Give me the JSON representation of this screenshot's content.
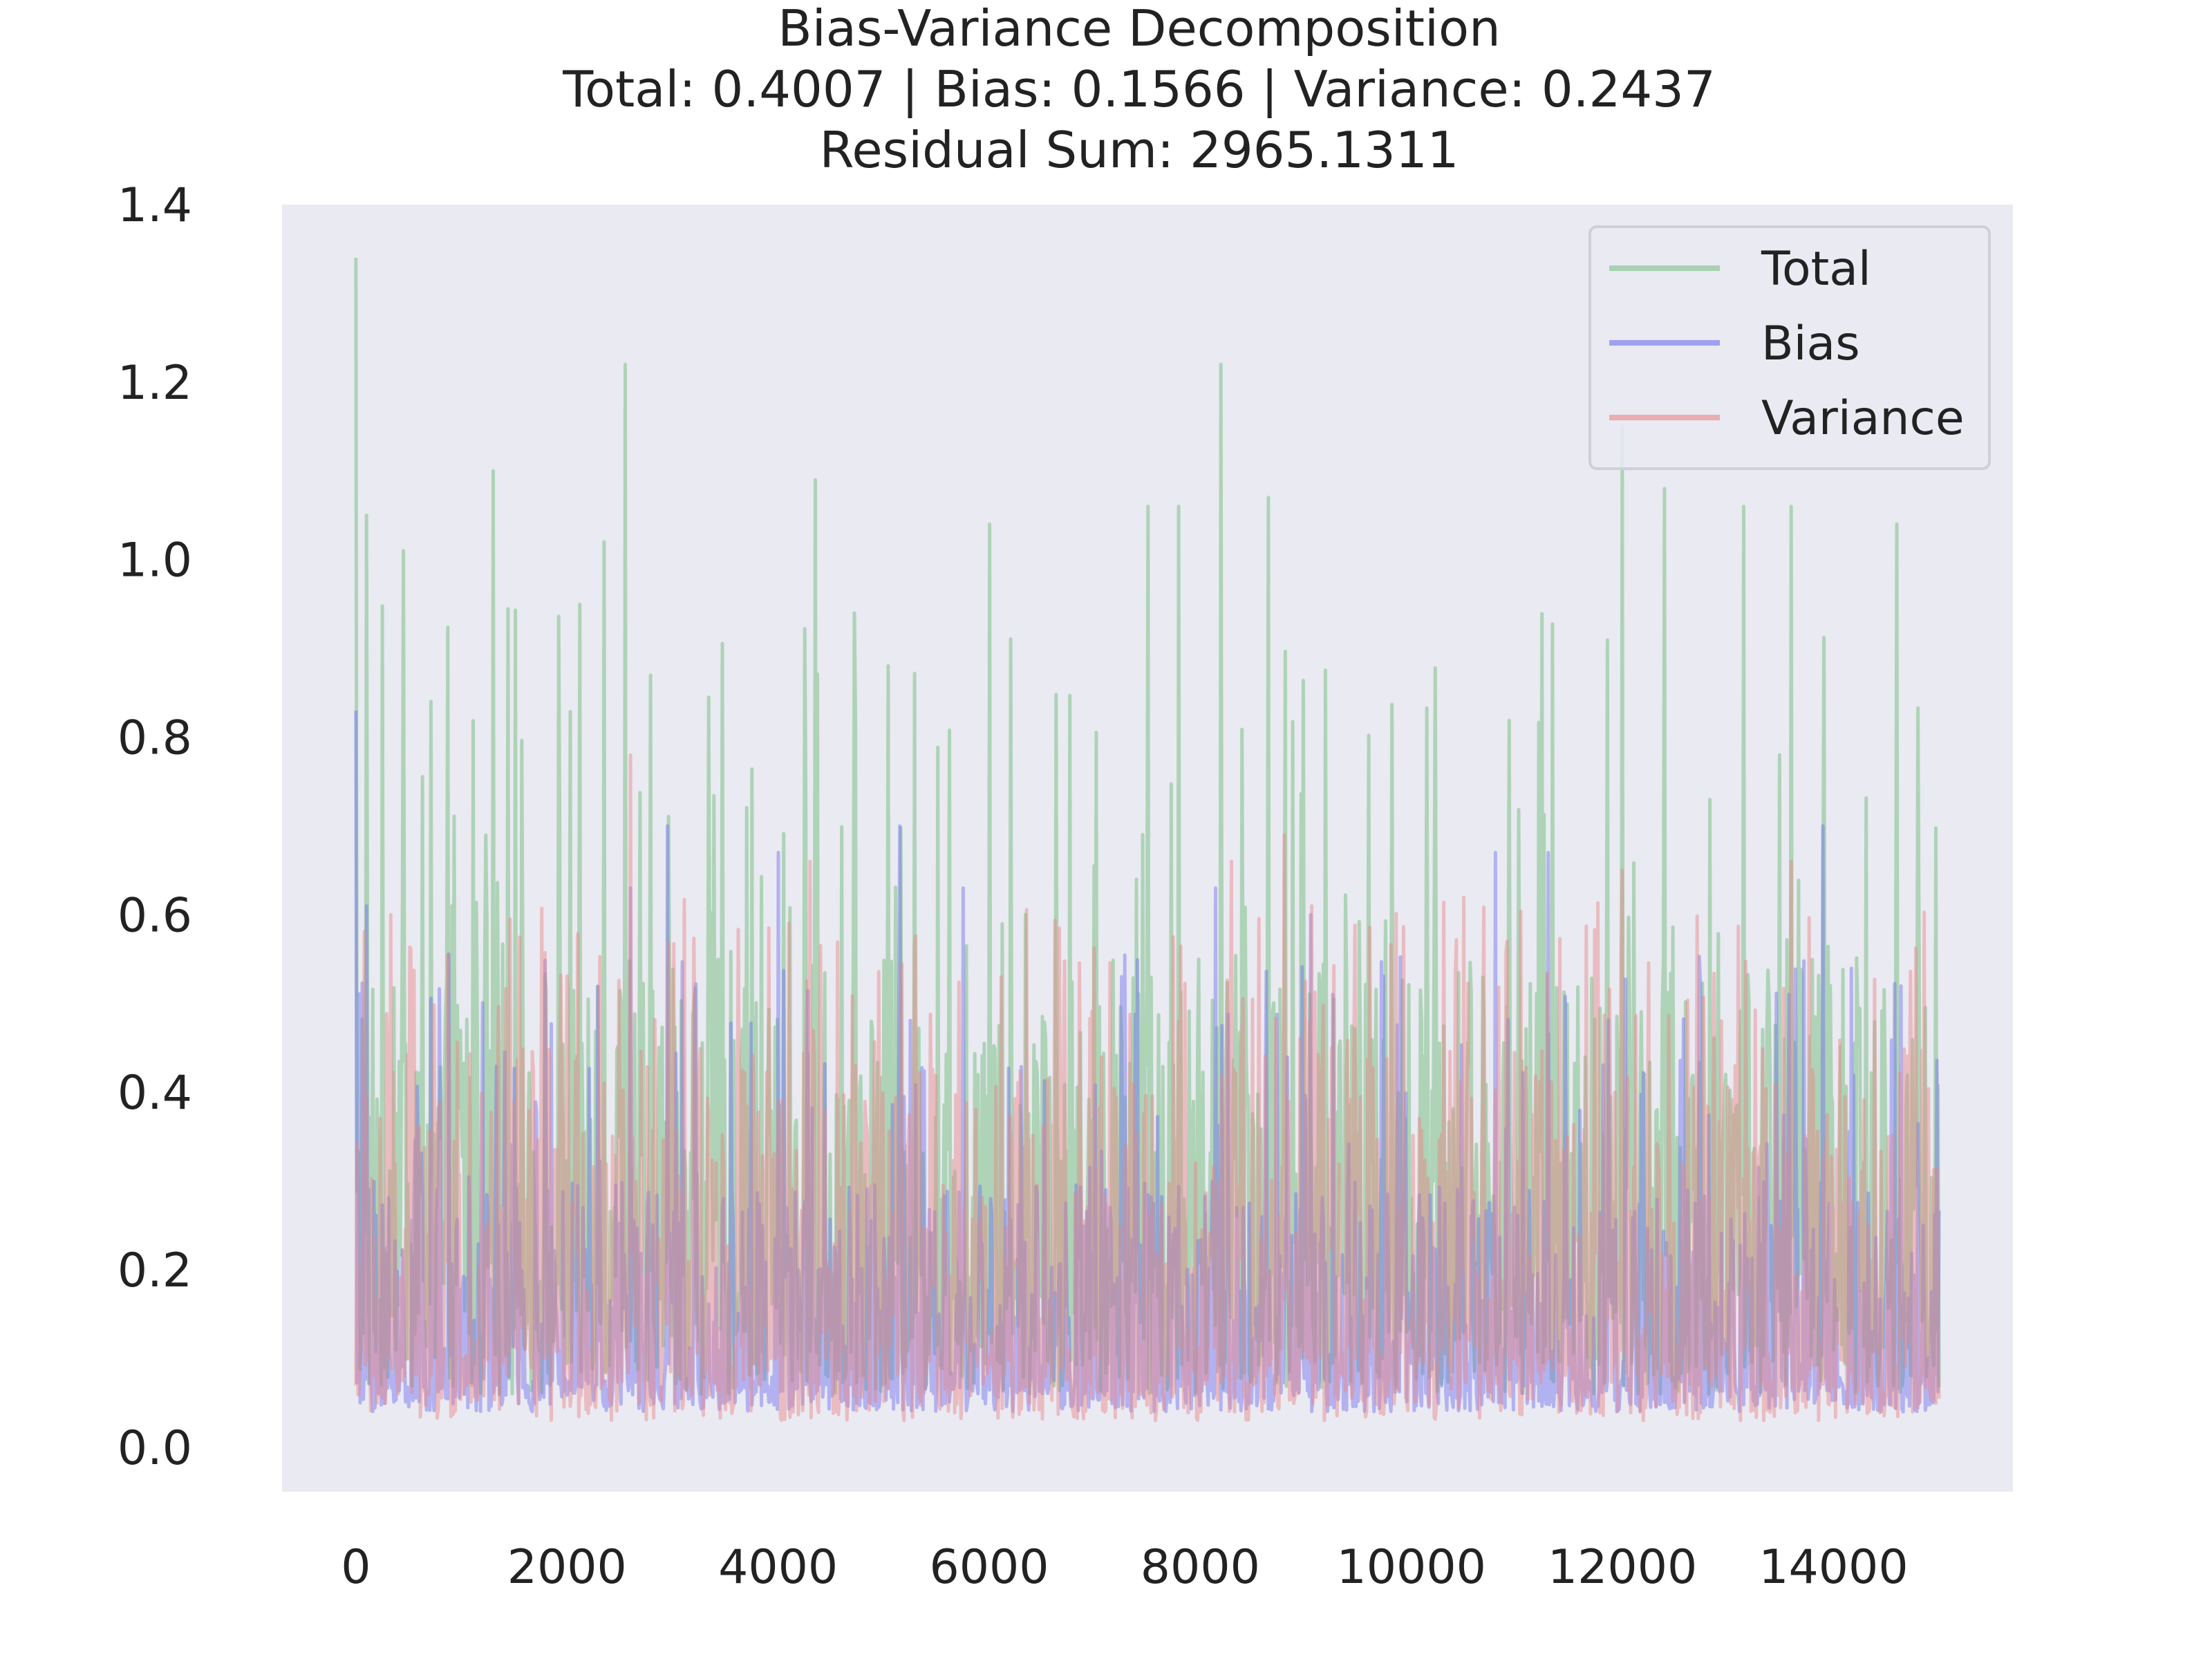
{
  "chart_data": {
    "type": "line",
    "title_lines": [
      "Bias-Variance Decomposition",
      "Total: 0.4007 | Bias: 0.1566 | Variance: 0.2437",
      "Residual Sum: 2965.1311"
    ],
    "xlabel": "",
    "ylabel": "",
    "xlim": [
      -700,
      15700
    ],
    "ylim": [
      -0.05,
      1.4
    ],
    "x_ticks": [
      0,
      2000,
      4000,
      6000,
      8000,
      10000,
      12000,
      14000
    ],
    "x_tick_labels": [
      "0",
      "2000",
      "4000",
      "6000",
      "8000",
      "10000",
      "12000",
      "14000"
    ],
    "y_ticks": [
      0.0,
      0.2,
      0.4,
      0.6,
      0.8,
      1.0,
      1.2,
      1.4
    ],
    "y_tick_labels": [
      "0.0",
      "0.2",
      "0.4",
      "0.6",
      "0.8",
      "1.0",
      "1.2",
      "1.4"
    ],
    "grid": false,
    "background": "#EAEAF2",
    "legend_position": "top-right",
    "x_range": [
      0,
      15000
    ],
    "series": [
      {
        "name": "Total",
        "color": "#7CBF87",
        "opacity": 0.55,
        "band": {
          "low": 0.06,
          "typical_low": 0.22,
          "typical_high": 0.55,
          "high": 0.95
        },
        "mean": 0.4007,
        "peaks": [
          {
            "x": 0,
            "y": 1.34
          },
          {
            "x": 100,
            "y": 1.05
          },
          {
            "x": 450,
            "y": 1.01
          },
          {
            "x": 1300,
            "y": 1.1
          },
          {
            "x": 2350,
            "y": 1.02
          },
          {
            "x": 2550,
            "y": 1.22
          },
          {
            "x": 4350,
            "y": 1.09
          },
          {
            "x": 6000,
            "y": 1.04
          },
          {
            "x": 7500,
            "y": 1.06
          },
          {
            "x": 7800,
            "y": 1.06
          },
          {
            "x": 8200,
            "y": 1.22
          },
          {
            "x": 8650,
            "y": 1.07
          },
          {
            "x": 12000,
            "y": 1.15
          },
          {
            "x": 12400,
            "y": 1.08
          },
          {
            "x": 13150,
            "y": 1.06
          },
          {
            "x": 13600,
            "y": 1.06
          },
          {
            "x": 14600,
            "y": 1.04
          }
        ]
      },
      {
        "name": "Bias",
        "color": "#6E6EF0",
        "opacity": 0.45,
        "band": {
          "low": 0.04,
          "typical_low": 0.08,
          "typical_high": 0.3,
          "high": 0.56
        },
        "mean": 0.1566,
        "peaks": [
          {
            "x": 0,
            "y": 0.83
          },
          {
            "x": 100,
            "y": 0.61
          },
          {
            "x": 2600,
            "y": 0.63
          },
          {
            "x": 2950,
            "y": 0.7
          },
          {
            "x": 4000,
            "y": 0.67
          },
          {
            "x": 5150,
            "y": 0.7
          },
          {
            "x": 5750,
            "y": 0.63
          },
          {
            "x": 8150,
            "y": 0.63
          },
          {
            "x": 9050,
            "y": 0.6
          },
          {
            "x": 10800,
            "y": 0.67
          },
          {
            "x": 11300,
            "y": 0.67
          },
          {
            "x": 13900,
            "y": 0.7
          }
        ]
      },
      {
        "name": "Variance",
        "color": "#E88585",
        "opacity": 0.45,
        "band": {
          "low": 0.03,
          "typical_low": 0.12,
          "typical_high": 0.45,
          "high": 0.62
        },
        "mean": 0.2437,
        "peaks": [
          {
            "x": 2600,
            "y": 0.78
          },
          {
            "x": 4300,
            "y": 0.66
          },
          {
            "x": 8300,
            "y": 0.66
          },
          {
            "x": 8800,
            "y": 0.69
          },
          {
            "x": 12000,
            "y": 0.65
          },
          {
            "x": 13600,
            "y": 0.66
          }
        ]
      }
    ]
  }
}
